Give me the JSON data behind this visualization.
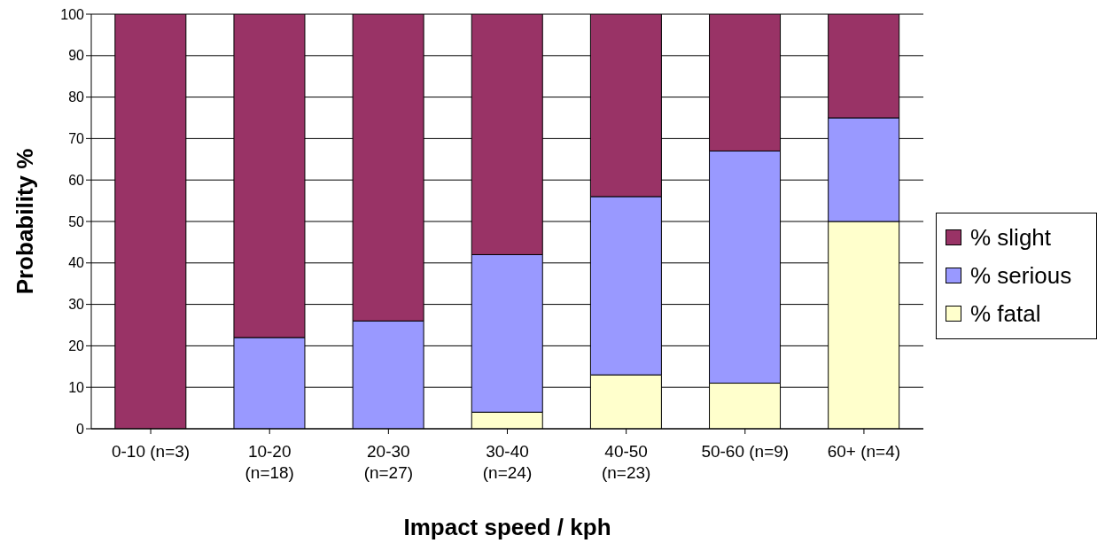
{
  "chart_data": {
    "type": "bar",
    "stacked": true,
    "xlabel": "Impact speed / kph",
    "ylabel": "Probability %",
    "categories": [
      "0-10 (n=3)",
      "10-20\n(n=18)",
      "20-30\n(n=27)",
      "30-40\n(n=24)",
      "40-50\n(n=23)",
      "50-60 (n=9)",
      "60+ (n=4)"
    ],
    "series": [
      {
        "name": "% fatal",
        "color": "#ffffcc",
        "values": [
          0,
          0,
          0,
          4,
          13,
          11,
          50
        ]
      },
      {
        "name": "% serious",
        "color": "#9999ff",
        "values": [
          0,
          22,
          26,
          38,
          43,
          56,
          25
        ]
      },
      {
        "name": "% slight",
        "color": "#993366",
        "values": [
          100,
          78,
          74,
          58,
          44,
          33,
          25
        ]
      }
    ],
    "ylim": [
      0,
      100
    ],
    "yticks": [
      0,
      10,
      20,
      30,
      40,
      50,
      60,
      70,
      80,
      90,
      100
    ],
    "grid": "y",
    "legend": "right"
  }
}
